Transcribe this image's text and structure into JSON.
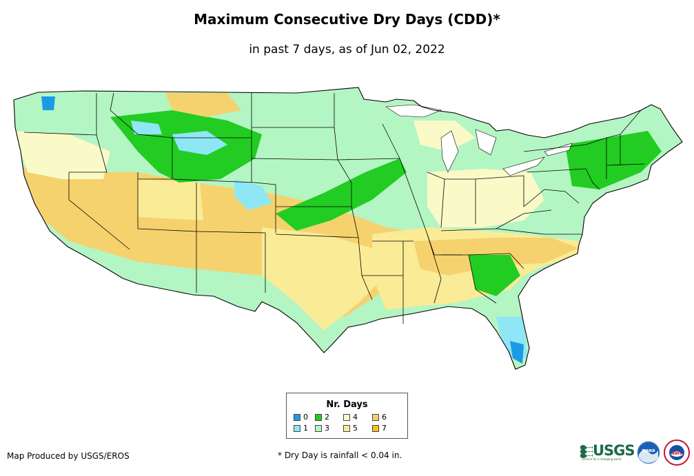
{
  "title": "Maximum Consecutive Dry Days (CDD)*",
  "subtitle": "in past 7 days, as of Jun 02, 2022",
  "legend": {
    "title": "Nr. Days",
    "items": [
      {
        "label": "0",
        "color": "#1a9be6"
      },
      {
        "label": "1",
        "color": "#8fe6f5"
      },
      {
        "label": "2",
        "color": "#22cc22"
      },
      {
        "label": "3",
        "color": "#b4f5c4"
      },
      {
        "label": "4",
        "color": "#fafac8"
      },
      {
        "label": "5",
        "color": "#faeb96"
      },
      {
        "label": "6",
        "color": "#f5d26e"
      },
      {
        "label": "7",
        "color": "#f5c218"
      }
    ]
  },
  "footer": {
    "producer": "Map Produced by USGS/EROS",
    "note": "* Dry Day is rainfall < 0.04 in."
  },
  "logos": {
    "usgs": "USGS",
    "usgs_tagline": "science for a changing world",
    "noaa": "noaa",
    "nws": "NWS"
  }
}
